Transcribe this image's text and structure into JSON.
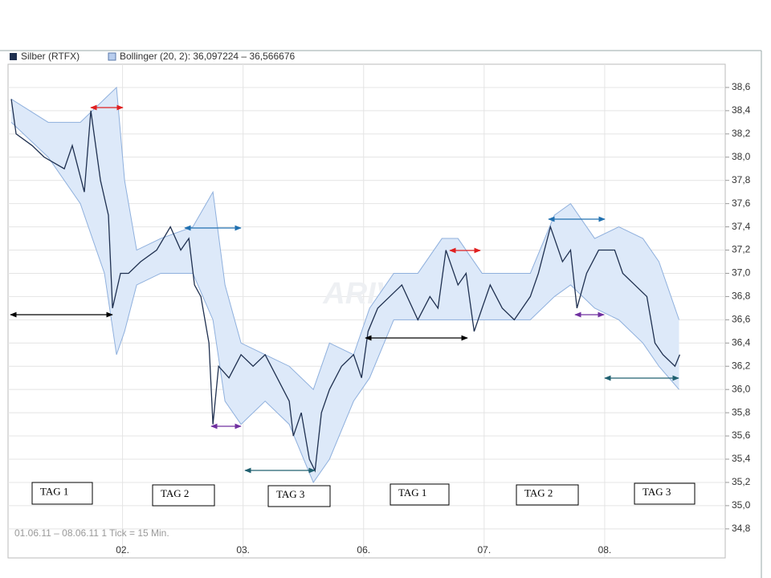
{
  "chart_data": {
    "type": "line",
    "watermark": "ARIVA",
    "footnote": "01.06.11 – 08.06.11   1 Tick = 15 Min.",
    "annotations": [
      "TAG 1",
      "TAG 2",
      "TAG 3",
      "TAG 1",
      "TAG 2",
      "TAG 3"
    ],
    "xlim": [
      0.05,
      6
    ],
    "xticks": [
      {
        "value": 1,
        "label": "02."
      },
      {
        "value": 2,
        "label": "03."
      },
      {
        "value": 3,
        "label": "06."
      },
      {
        "value": 4,
        "label": "07."
      },
      {
        "value": 5,
        "label": "08."
      }
    ],
    "ylim": [
      34.55,
      38.8
    ],
    "yticks": [
      {
        "value": 34.8,
        "label": "34,8"
      },
      {
        "value": 35,
        "label": "35,0"
      },
      {
        "value": 35.2,
        "label": "35,2"
      },
      {
        "value": 35.4,
        "label": "35,4"
      },
      {
        "value": 35.6,
        "label": "35,6"
      },
      {
        "value": 35.8,
        "label": "35,8"
      },
      {
        "value": 36,
        "label": "36,0"
      },
      {
        "value": 36.2,
        "label": "36,2"
      },
      {
        "value": 36.4,
        "label": "36,4"
      },
      {
        "value": 36.6,
        "label": "36,6"
      },
      {
        "value": 36.8,
        "label": "36,8"
      },
      {
        "value": 37,
        "label": "37,0"
      },
      {
        "value": 37.2,
        "label": "37,2"
      },
      {
        "value": 37.4,
        "label": "37,4"
      },
      {
        "value": 37.6,
        "label": "37,6"
      },
      {
        "value": 37.8,
        "label": "37,8"
      },
      {
        "value": 38,
        "label": "38,0"
      },
      {
        "value": 38.2,
        "label": "38,2"
      },
      {
        "value": 38.4,
        "label": "38,4"
      },
      {
        "value": 38.6,
        "label": "38,6"
      }
    ],
    "grid": true,
    "series": [
      {
        "name": "Silber (RTFX)",
        "color": "#1f3050",
        "x": [
          0.077,
          0.117,
          0.25,
          0.35,
          0.517,
          0.583,
          0.683,
          0.737,
          0.817,
          0.883,
          0.917,
          0.983,
          1.05,
          1.15,
          1.283,
          1.397,
          1.483,
          1.55,
          1.597,
          1.65,
          1.717,
          1.75,
          1.797,
          1.883,
          1.983,
          2.083,
          2.183,
          2.283,
          2.383,
          2.417,
          2.483,
          2.55,
          2.597,
          2.65,
          2.717,
          2.817,
          2.917,
          2.983,
          3.037,
          3.117,
          3.217,
          3.317,
          3.45,
          3.55,
          3.617,
          3.683,
          3.783,
          3.85,
          3.917,
          3.983,
          4.05,
          4.15,
          4.25,
          4.383,
          4.45,
          4.55,
          4.65,
          4.717,
          4.77,
          4.85,
          4.95,
          5.017,
          5.083,
          5.15,
          5.25,
          5.35,
          5.417,
          5.483,
          5.583,
          5.623
        ],
        "values": [
          38.5,
          38.2,
          38.1,
          38.0,
          37.9,
          38.1,
          37.7,
          38.4,
          37.8,
          37.5,
          36.7,
          37.0,
          37.0,
          37.1,
          37.2,
          37.4,
          37.2,
          37.3,
          36.9,
          36.8,
          36.4,
          35.7,
          36.2,
          36.1,
          36.3,
          36.2,
          36.3,
          36.1,
          35.9,
          35.6,
          35.8,
          35.4,
          35.3,
          35.8,
          36.0,
          36.2,
          36.3,
          36.1,
          36.5,
          36.7,
          36.8,
          36.9,
          36.6,
          36.8,
          36.7,
          37.2,
          36.9,
          37.0,
          36.5,
          36.7,
          36.9,
          36.7,
          36.6,
          36.8,
          37.0,
          37.4,
          37.1,
          37.2,
          36.7,
          37.0,
          37.2,
          37.2,
          37.2,
          37.0,
          36.9,
          36.8,
          36.4,
          36.3,
          36.2,
          36.3
        ]
      }
    ],
    "bands": {
      "name": "Bollinger (20, 2): 36,097224 – 36,566676",
      "color": "#dde9f9",
      "line_color": "#8fb0dd",
      "x": [
        0.077,
        0.383,
        0.65,
        0.85,
        0.95,
        1.017,
        1.117,
        1.317,
        1.583,
        1.75,
        1.85,
        1.983,
        2.183,
        2.383,
        2.583,
        2.717,
        2.917,
        3.05,
        3.25,
        3.45,
        3.65,
        3.783,
        3.983,
        4.183,
        4.383,
        4.583,
        4.717,
        4.917,
        5.117,
        5.317,
        5.45,
        5.617
      ],
      "upper": [
        38.5,
        38.3,
        38.3,
        38.5,
        38.6,
        37.8,
        37.2,
        37.3,
        37.4,
        37.7,
        36.9,
        36.4,
        36.3,
        36.2,
        36.0,
        36.4,
        36.3,
        36.7,
        37.0,
        37.0,
        37.3,
        37.3,
        37.0,
        37.0,
        37.0,
        37.5,
        37.6,
        37.3,
        37.4,
        37.3,
        37.1,
        36.6
      ],
      "lower": [
        38.3,
        38.0,
        37.6,
        37.0,
        36.3,
        36.5,
        36.9,
        37.0,
        37.0,
        36.6,
        35.9,
        35.7,
        35.9,
        35.7,
        35.2,
        35.4,
        35.9,
        36.1,
        36.6,
        36.6,
        36.6,
        36.6,
        36.6,
        36.6,
        36.6,
        36.8,
        36.9,
        36.7,
        36.6,
        36.4,
        36.2,
        36.0
      ]
    }
  }
}
